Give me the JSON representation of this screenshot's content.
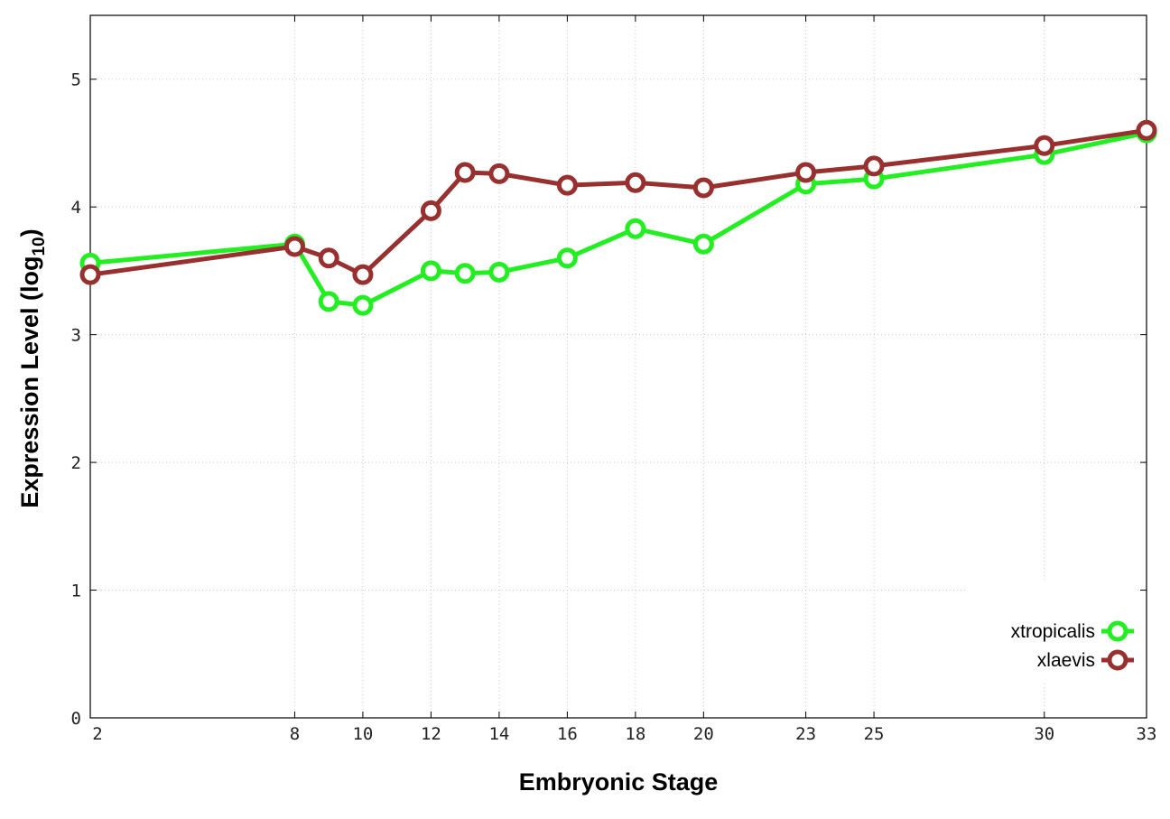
{
  "chart_data": {
    "type": "line",
    "xlabel": "Embryonic Stage",
    "ylabel": "Expression Level (log",
    "ylabel_subscript": "10",
    "ylabel_suffix": ")",
    "xlim": [
      2,
      33
    ],
    "ylim": [
      0,
      5.5
    ],
    "x_ticks": [
      2,
      8,
      10,
      12,
      14,
      16,
      18,
      20,
      23,
      25,
      30,
      33
    ],
    "y_ticks": [
      0,
      1,
      2,
      3,
      4,
      5
    ],
    "grid": true,
    "legend_position": "bottom-right",
    "x": [
      2,
      8,
      9,
      10,
      12,
      13,
      14,
      16,
      18,
      20,
      23,
      25,
      30,
      33
    ],
    "series": [
      {
        "name": "xtropicalis",
        "color": "#22ee22",
        "marker": "circle",
        "values": [
          3.56,
          3.71,
          3.26,
          3.23,
          3.5,
          3.48,
          3.49,
          3.6,
          3.83,
          3.71,
          4.18,
          4.22,
          4.41,
          4.58
        ]
      },
      {
        "name": "xlaevis",
        "color": "#993030",
        "marker": "circle",
        "values": [
          3.47,
          3.69,
          3.6,
          3.47,
          3.97,
          4.27,
          4.26,
          4.17,
          4.19,
          4.15,
          4.27,
          4.32,
          4.48,
          4.6
        ]
      }
    ]
  }
}
